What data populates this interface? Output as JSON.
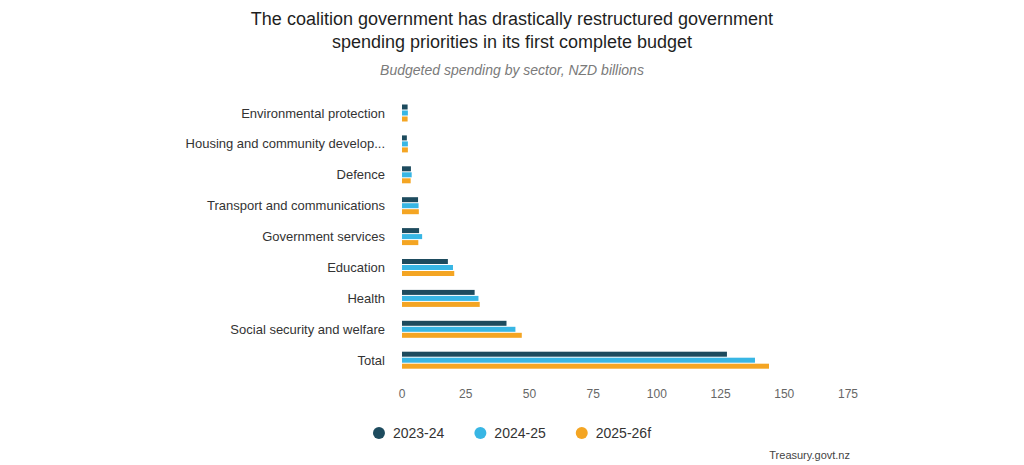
{
  "chart_data": {
    "type": "bar",
    "orientation": "horizontal",
    "title": "The coalition government has drastically restructured government spending priorities in its first complete budget",
    "subtitle": "Budgeted spending by sector, NZD billions",
    "source": "Treasury.govt.nz",
    "categories": [
      "Environmental protection",
      "Housing and community develop...",
      "Defence",
      "Transport and communications",
      "Government services",
      "Education",
      "Health",
      "Social security and welfare",
      "Total"
    ],
    "series": [
      {
        "name": "2023-24",
        "color": "#1d4b5e",
        "values": [
          2.2,
          1.9,
          3.5,
          6.3,
          6.7,
          18,
          28.5,
          41,
          127.5
        ]
      },
      {
        "name": "2024-25",
        "color": "#38b6e4",
        "values": [
          2.3,
          2.3,
          3.8,
          6.5,
          7.9,
          20,
          30,
          44.5,
          138.5
        ]
      },
      {
        "name": "2025-26f",
        "color": "#f4a523",
        "values": [
          2.2,
          2.3,
          3.4,
          6.6,
          6.4,
          20.5,
          30.5,
          47,
          144
        ]
      }
    ],
    "xlim": [
      0,
      175
    ],
    "xticks": [
      0,
      25,
      50,
      75,
      100,
      125,
      150,
      175
    ],
    "grid": false,
    "legend": "bottom"
  }
}
